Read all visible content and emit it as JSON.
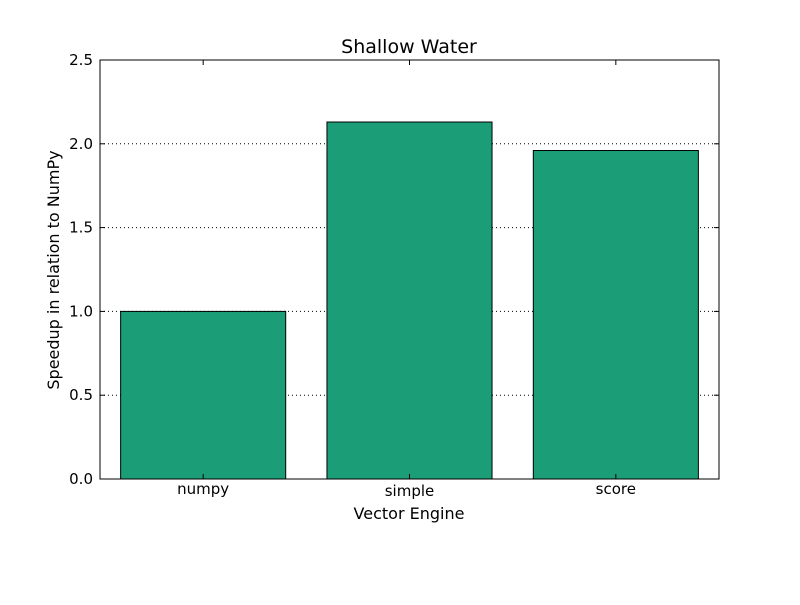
{
  "chart_data": {
    "type": "bar",
    "title": "Shallow Water",
    "xlabel": "Vector Engine",
    "ylabel": "Speedup in relation to NumPy",
    "categories": [
      "numpy",
      "simple",
      "score"
    ],
    "values": [
      1.0,
      2.13,
      1.96
    ],
    "ylim": [
      0,
      2.5
    ],
    "yticks": [
      0.0,
      0.5,
      1.0,
      1.5,
      2.0,
      2.5
    ],
    "ytick_labels": [
      "0.0",
      "0.5",
      "1.0",
      "1.5",
      "2.0",
      "2.5"
    ],
    "grid": "horizontal dotted",
    "legend": "none",
    "colors": {
      "bar_fill": "#1b9e77",
      "bar_edge": "#000000",
      "grid": "#000000",
      "axes": "#000000"
    }
  }
}
